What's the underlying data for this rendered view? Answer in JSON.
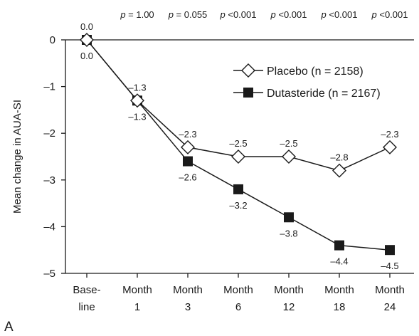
{
  "chart_data": {
    "type": "line",
    "ylabel": "Mean change in AUA-SI",
    "categories": [
      [
        "Base-",
        "line"
      ],
      [
        "Month",
        "1"
      ],
      [
        "Month",
        "3"
      ],
      [
        "Month",
        "6"
      ],
      [
        "Month",
        "12"
      ],
      [
        "Month",
        "18"
      ],
      [
        "Month",
        "24"
      ]
    ],
    "ylim": [
      -5,
      0
    ],
    "yticks": [
      0,
      -1,
      -2,
      -3,
      -4,
      -5
    ],
    "ytick_labels": [
      "0",
      "–1",
      "–2",
      "–3",
      "–4",
      "–5"
    ],
    "series": [
      {
        "name": "Placebo (n = 2158)",
        "marker": "diamond-open",
        "color": "#1a1a1a",
        "values": [
          0.0,
          -1.3,
          -2.3,
          -2.5,
          -2.5,
          -2.8,
          -2.3
        ],
        "labels": [
          "0.0",
          "–1.3",
          "–2.3",
          "–2.5",
          "–2.5",
          "–2.8",
          "–2.3"
        ]
      },
      {
        "name": "Dutasteride (n = 2167)",
        "marker": "square-filled",
        "color": "#1a1a1a",
        "values": [
          0.0,
          -1.3,
          -2.6,
          -3.2,
          -3.8,
          -4.4,
          -4.5
        ],
        "labels": [
          "0.0",
          "–1.3",
          "–2.6",
          "–3.2",
          "–3.8",
          "–4.4",
          "–4.5"
        ]
      }
    ],
    "p_values": [
      {
        "p": "p",
        "rest": " = 1.00"
      },
      {
        "p": "p",
        "rest": " = 0.055"
      },
      {
        "p": "p",
        "rest": " <0.001"
      },
      {
        "p": "p",
        "rest": " <0.001"
      },
      {
        "p": "p",
        "rest": " <0.001"
      },
      {
        "p": "p",
        "rest": " <0.001"
      }
    ],
    "legend_position": "top-right",
    "grid": false
  },
  "panel_label": "A"
}
